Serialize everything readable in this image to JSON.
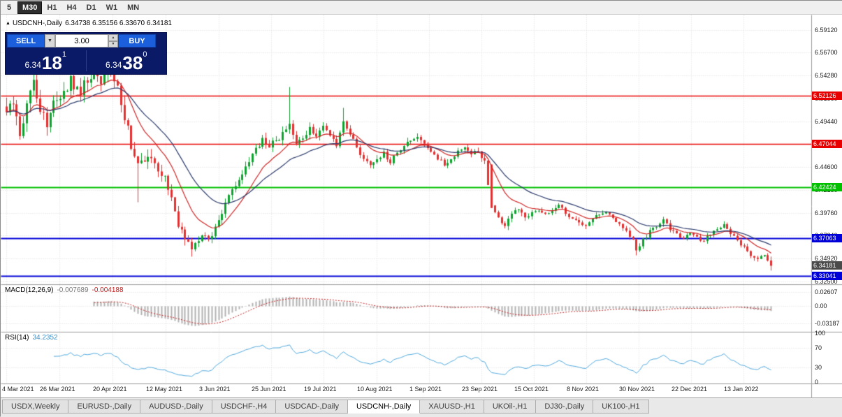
{
  "toolbar": {
    "timeframes": [
      {
        "label": "5",
        "active": false
      },
      {
        "label": "M30",
        "active": true
      },
      {
        "label": "H1",
        "active": false
      },
      {
        "label": "H4",
        "active": false
      },
      {
        "label": "D1",
        "active": false
      },
      {
        "label": "W1",
        "active": false
      },
      {
        "label": "MN",
        "active": false
      }
    ]
  },
  "chart": {
    "title": {
      "marker": "▲",
      "symbol": "USDCNH-,Daily",
      "ohlc": "6.34738 6.35156 6.33670 6.34181"
    }
  },
  "trade_panel": {
    "sell_label": "SELL",
    "buy_label": "BUY",
    "volume": "3.00",
    "dropdown_icon": "▼",
    "spin_up_icon": "▲",
    "spin_down_icon": "▼",
    "bid": {
      "base": "6.34",
      "pips": "18",
      "sup": "1"
    },
    "ask": {
      "base": "6.34",
      "pips": "38",
      "sup": "0"
    },
    "colors": {
      "panel_bg": "#0b1a66",
      "button_blue": "#1b5fdc"
    }
  },
  "indicators": {
    "macd": {
      "label": "MACD(12,26,9)",
      "value_main": "-0.007689",
      "value_signal": "-0.004188",
      "axis": [
        "0.02607",
        "0.00",
        "-0.03187"
      ]
    },
    "rsi": {
      "label": "RSI(14)",
      "value": "34.2352",
      "axis": [
        "100",
        "70",
        "30",
        "0"
      ],
      "levels": [
        70,
        30
      ]
    }
  },
  "price_scale": {
    "ticks": [
      "6.59120",
      "6.56700",
      "6.54280",
      "6.51860",
      "6.49440",
      "6.47020",
      "6.44600",
      "6.42180",
      "6.39760",
      "6.37340",
      "6.34920",
      "6.32500"
    ],
    "line_tags": [
      {
        "label": "6.52126",
        "value": 6.52126,
        "color": "#e80000",
        "width": 1.5
      },
      {
        "label": "6.47044",
        "value": 6.47044,
        "color": "#e80000",
        "width": 1.5
      },
      {
        "label": "6.42424",
        "value": 6.42424,
        "color": "#00c000",
        "width": 2
      },
      {
        "label": "6.37063",
        "value": 6.37063,
        "color": "#0000d8",
        "width": 2
      },
      {
        "label": "6.33041",
        "value": 6.33041,
        "color": "#0000d8",
        "width": 2
      }
    ],
    "current_price_tag": {
      "label": "6.34181",
      "value": 6.34181,
      "bg": "#4a4a4a"
    }
  },
  "tabs": {
    "items": [
      {
        "label": "USDX,Weekly",
        "active": false
      },
      {
        "label": "EURUSD-,Daily",
        "active": false
      },
      {
        "label": "AUDUSD-,Daily",
        "active": false
      },
      {
        "label": "USDCHF-,H4",
        "active": false
      },
      {
        "label": "USDCAD-,Daily",
        "active": false
      },
      {
        "label": "USDCNH-,Daily",
        "active": true
      },
      {
        "label": "XAUUSD-,H1",
        "active": false
      },
      {
        "label": "UKOil-,H1",
        "active": false
      },
      {
        "label": "DJ30-,Daily",
        "active": false
      },
      {
        "label": "UK100-,H1",
        "active": false
      }
    ]
  },
  "chart_data": {
    "type": "candlestick",
    "symbol": "USDCNH-",
    "timeframe": "Daily",
    "title": "USDCNH-,Daily",
    "current_ohlc": {
      "open": 6.34738,
      "high": 6.35156,
      "low": 6.3367,
      "close": 6.34181
    },
    "y_range": [
      6.3233,
      6.6043
    ],
    "x_axis": {
      "labels": [
        "4 Mar 2021",
        "26 Mar 2021",
        "20 Apr 2021",
        "12 May 2021",
        "3 Jun 2021",
        "25 Jun 2021",
        "19 Jul 2021",
        "10 Aug 2021",
        "1 Sep 2021",
        "23 Sep 2021",
        "15 Oct 2021",
        "8 Nov 2021",
        "30 Nov 2021",
        "22 Dec 2021",
        "13 Jan 2022"
      ],
      "positions": [
        8,
        84,
        160,
        236,
        312,
        387,
        462,
        538,
        613,
        688,
        763,
        838,
        913,
        988,
        1063
      ]
    },
    "candle_count": 228,
    "x_start": 8,
    "x_step": 4.82,
    "price_anchors": [
      [
        0,
        6.5
      ],
      [
        2,
        6.516
      ],
      [
        4,
        6.479
      ],
      [
        6,
        6.512
      ],
      [
        8,
        6.534
      ],
      [
        10,
        6.506
      ],
      [
        12,
        6.49
      ],
      [
        14,
        6.513
      ],
      [
        16,
        6.522
      ],
      [
        19,
        6.538
      ],
      [
        22,
        6.527
      ],
      [
        25,
        6.544
      ],
      [
        28,
        6.537
      ],
      [
        31,
        6.549
      ],
      [
        33,
        6.531
      ],
      [
        35,
        6.501
      ],
      [
        37,
        6.468
      ],
      [
        39,
        6.446
      ],
      [
        42,
        6.456
      ],
      [
        45,
        6.441
      ],
      [
        47,
        6.437
      ],
      [
        49,
        6.412
      ],
      [
        51,
        6.386
      ],
      [
        53,
        6.371
      ],
      [
        55,
        6.36
      ],
      [
        58,
        6.374
      ],
      [
        60,
        6.367
      ],
      [
        62,
        6.381
      ],
      [
        64,
        6.399
      ],
      [
        66,
        6.414
      ],
      [
        68,
        6.429
      ],
      [
        70,
        6.441
      ],
      [
        72,
        6.454
      ],
      [
        74,
        6.464
      ],
      [
        76,
        6.474
      ],
      [
        78,
        6.47
      ],
      [
        80,
        6.474
      ],
      [
        82,
        6.481
      ],
      [
        84,
        6.49
      ],
      [
        86,
        6.471
      ],
      [
        88,
        6.476
      ],
      [
        90,
        6.486
      ],
      [
        92,
        6.478
      ],
      [
        94,
        6.488
      ],
      [
        96,
        6.481
      ],
      [
        98,
        6.471
      ],
      [
        100,
        6.494
      ],
      [
        102,
        6.481
      ],
      [
        104,
        6.466
      ],
      [
        106,
        6.456
      ],
      [
        108,
        6.446
      ],
      [
        110,
        6.455
      ],
      [
        112,
        6.461
      ],
      [
        114,
        6.451
      ],
      [
        116,
        6.462
      ],
      [
        118,
        6.47
      ],
      [
        120,
        6.476
      ],
      [
        122,
        6.478
      ],
      [
        124,
        6.47
      ],
      [
        126,
        6.462
      ],
      [
        128,
        6.455
      ],
      [
        130,
        6.449
      ],
      [
        132,
        6.456
      ],
      [
        134,
        6.463
      ],
      [
        136,
        6.468
      ],
      [
        138,
        6.461
      ],
      [
        140,
        6.463
      ],
      [
        142,
        6.452
      ],
      [
        144,
        6.405
      ],
      [
        146,
        6.391
      ],
      [
        148,
        6.386
      ],
      [
        150,
        6.396
      ],
      [
        152,
        6.401
      ],
      [
        154,
        6.392
      ],
      [
        156,
        6.399
      ],
      [
        158,
        6.401
      ],
      [
        160,
        6.396
      ],
      [
        162,
        6.401
      ],
      [
        164,
        6.406
      ],
      [
        166,
        6.398
      ],
      [
        168,
        6.391
      ],
      [
        170,
        6.386
      ],
      [
        172,
        6.383
      ],
      [
        174,
        6.391
      ],
      [
        176,
        6.396
      ],
      [
        178,
        6.4
      ],
      [
        180,
        6.392
      ],
      [
        182,
        6.386
      ],
      [
        184,
        6.378
      ],
      [
        186,
        6.369
      ],
      [
        187,
        6.359
      ],
      [
        189,
        6.369
      ],
      [
        191,
        6.378
      ],
      [
        193,
        6.383
      ],
      [
        195,
        6.389
      ],
      [
        197,
        6.381
      ],
      [
        199,
        6.375
      ],
      [
        201,
        6.371
      ],
      [
        203,
        6.378
      ],
      [
        205,
        6.371
      ],
      [
        207,
        6.369
      ],
      [
        209,
        6.376
      ],
      [
        211,
        6.381
      ],
      [
        213,
        6.384
      ],
      [
        215,
        6.377
      ],
      [
        217,
        6.369
      ],
      [
        219,
        6.361
      ],
      [
        221,
        6.354
      ],
      [
        223,
        6.349
      ],
      [
        225,
        6.352
      ],
      [
        226,
        6.346
      ],
      [
        227,
        6.3418
      ]
    ],
    "vol_anchors": [
      [
        0,
        0.013
      ],
      [
        35,
        0.013
      ],
      [
        50,
        0.009
      ],
      [
        62,
        0.007
      ],
      [
        75,
        0.008
      ],
      [
        90,
        0.007
      ],
      [
        105,
        0.006
      ],
      [
        140,
        0.005
      ],
      [
        146,
        0.006
      ],
      [
        160,
        0.0045
      ],
      [
        227,
        0.0042
      ]
    ],
    "forced_candles": [
      {
        "i": 25,
        "high": 6.557
      },
      {
        "i": 31,
        "high": 6.56
      },
      {
        "i": 39,
        "low": 6.409
      },
      {
        "i": 55,
        "low": 6.3515
      },
      {
        "i": 84,
        "high": 6.531
      },
      {
        "i": 100,
        "high": 6.509
      },
      {
        "i": 144,
        "open": 6.449,
        "close": 6.403
      },
      {
        "i": 187,
        "low": 6.3528
      },
      {
        "i": 227,
        "open": 6.34738,
        "high": 6.35156,
        "low": 6.3367,
        "close": 6.34181
      }
    ],
    "overlays": [
      {
        "name": "ma-fast",
        "period": 12,
        "color": "#cf2424"
      },
      {
        "name": "ma-slow",
        "period": 26,
        "color": "#2b3a6b"
      }
    ],
    "macd": {
      "fast": 12,
      "slow": 26,
      "signal": 9,
      "y_range": [
        -0.0446,
        0.037
      ],
      "hist_color": "#b2b2b2",
      "signal_color": "#c22020"
    },
    "rsi": {
      "period": 14,
      "y_range": [
        0,
        100
      ],
      "color": "#4fa8dc"
    },
    "colors": {
      "up": "#0ea32e",
      "down": "#e33030",
      "grid": "#dadada",
      "separator": "#9a9a9a"
    },
    "legend_position": "none",
    "grid": true
  }
}
